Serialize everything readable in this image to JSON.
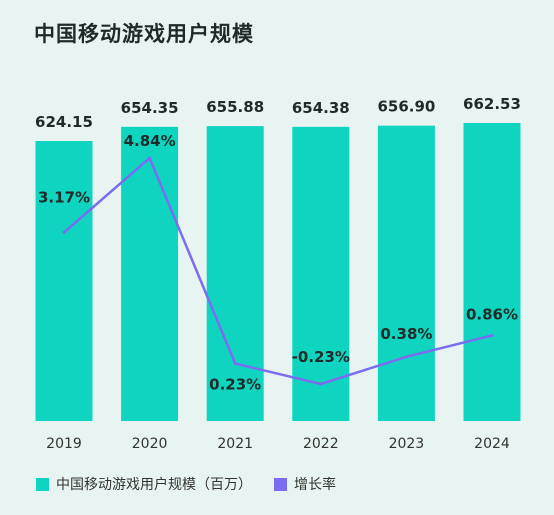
{
  "chart_data": {
    "type": "bar",
    "title": "中国移动游戏用户规模",
    "categories": [
      "2019",
      "2020",
      "2021",
      "2022",
      "2023",
      "2024"
    ],
    "series": [
      {
        "name": "中国移动游戏用户规模（百万）",
        "type": "bar",
        "values": [
          624.15,
          654.35,
          655.88,
          654.38,
          656.9,
          662.53
        ],
        "labels": [
          "624.15",
          "654.35",
          "655.88",
          "654.38",
          "656.90",
          "662.53"
        ],
        "color": "#0fd4bf"
      },
      {
        "name": "增长率",
        "type": "line",
        "values": [
          3.17,
          4.84,
          0.23,
          -0.23,
          0.38,
          0.86
        ],
        "labels": [
          "3.17%",
          "4.84%",
          "0.23%",
          "-0.23%",
          "0.38%",
          "0.86%"
        ],
        "color": "#7b6cf0"
      }
    ],
    "legend_position": "bottom-left",
    "grid": false
  }
}
